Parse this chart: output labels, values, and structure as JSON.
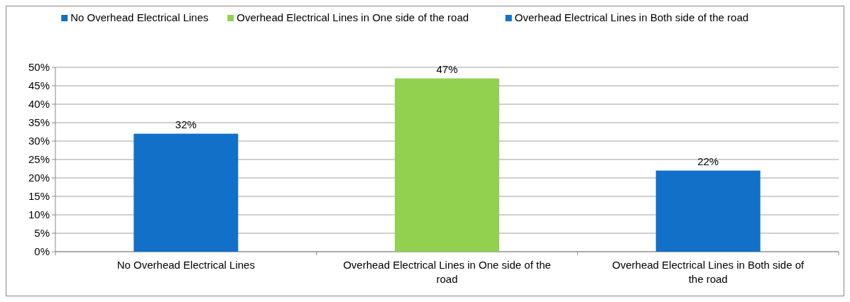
{
  "chart_data": {
    "type": "bar",
    "categories": [
      "No Overhead Electrical Lines",
      "Overhead Electrical Lines in One side of the road",
      "Overhead Electrical Lines in Both side of the road"
    ],
    "series": [
      {
        "name": "No Overhead Electrical Lines",
        "color": "#1270c8",
        "values": [
          32,
          null,
          null
        ],
        "value_labels": [
          "32%",
          null,
          null
        ]
      },
      {
        "name": "Overhead Electrical Lines in One side of the road",
        "color": "#92d050",
        "values": [
          null,
          47,
          null
        ],
        "value_labels": [
          null,
          "47%",
          null
        ]
      },
      {
        "name": "Overhead Electrical Lines in Both side of the road",
        "color": "#1270c8",
        "values": [
          null,
          null,
          22
        ],
        "value_labels": [
          null,
          null,
          "22%"
        ]
      }
    ],
    "ylim": [
      0,
      50
    ],
    "yticks": [
      {
        "value": 0,
        "label": "0%"
      },
      {
        "value": 5,
        "label": "5%"
      },
      {
        "value": 10,
        "label": "10%"
      },
      {
        "value": 15,
        "label": "15%"
      },
      {
        "value": 20,
        "label": "20%"
      },
      {
        "value": 25,
        "label": "25%"
      },
      {
        "value": 30,
        "label": "30%"
      },
      {
        "value": 35,
        "label": "35%"
      },
      {
        "value": 40,
        "label": "40%"
      },
      {
        "value": 45,
        "label": "45%"
      },
      {
        "value": 50,
        "label": "50%"
      }
    ],
    "grid": "y",
    "legend": "top"
  }
}
